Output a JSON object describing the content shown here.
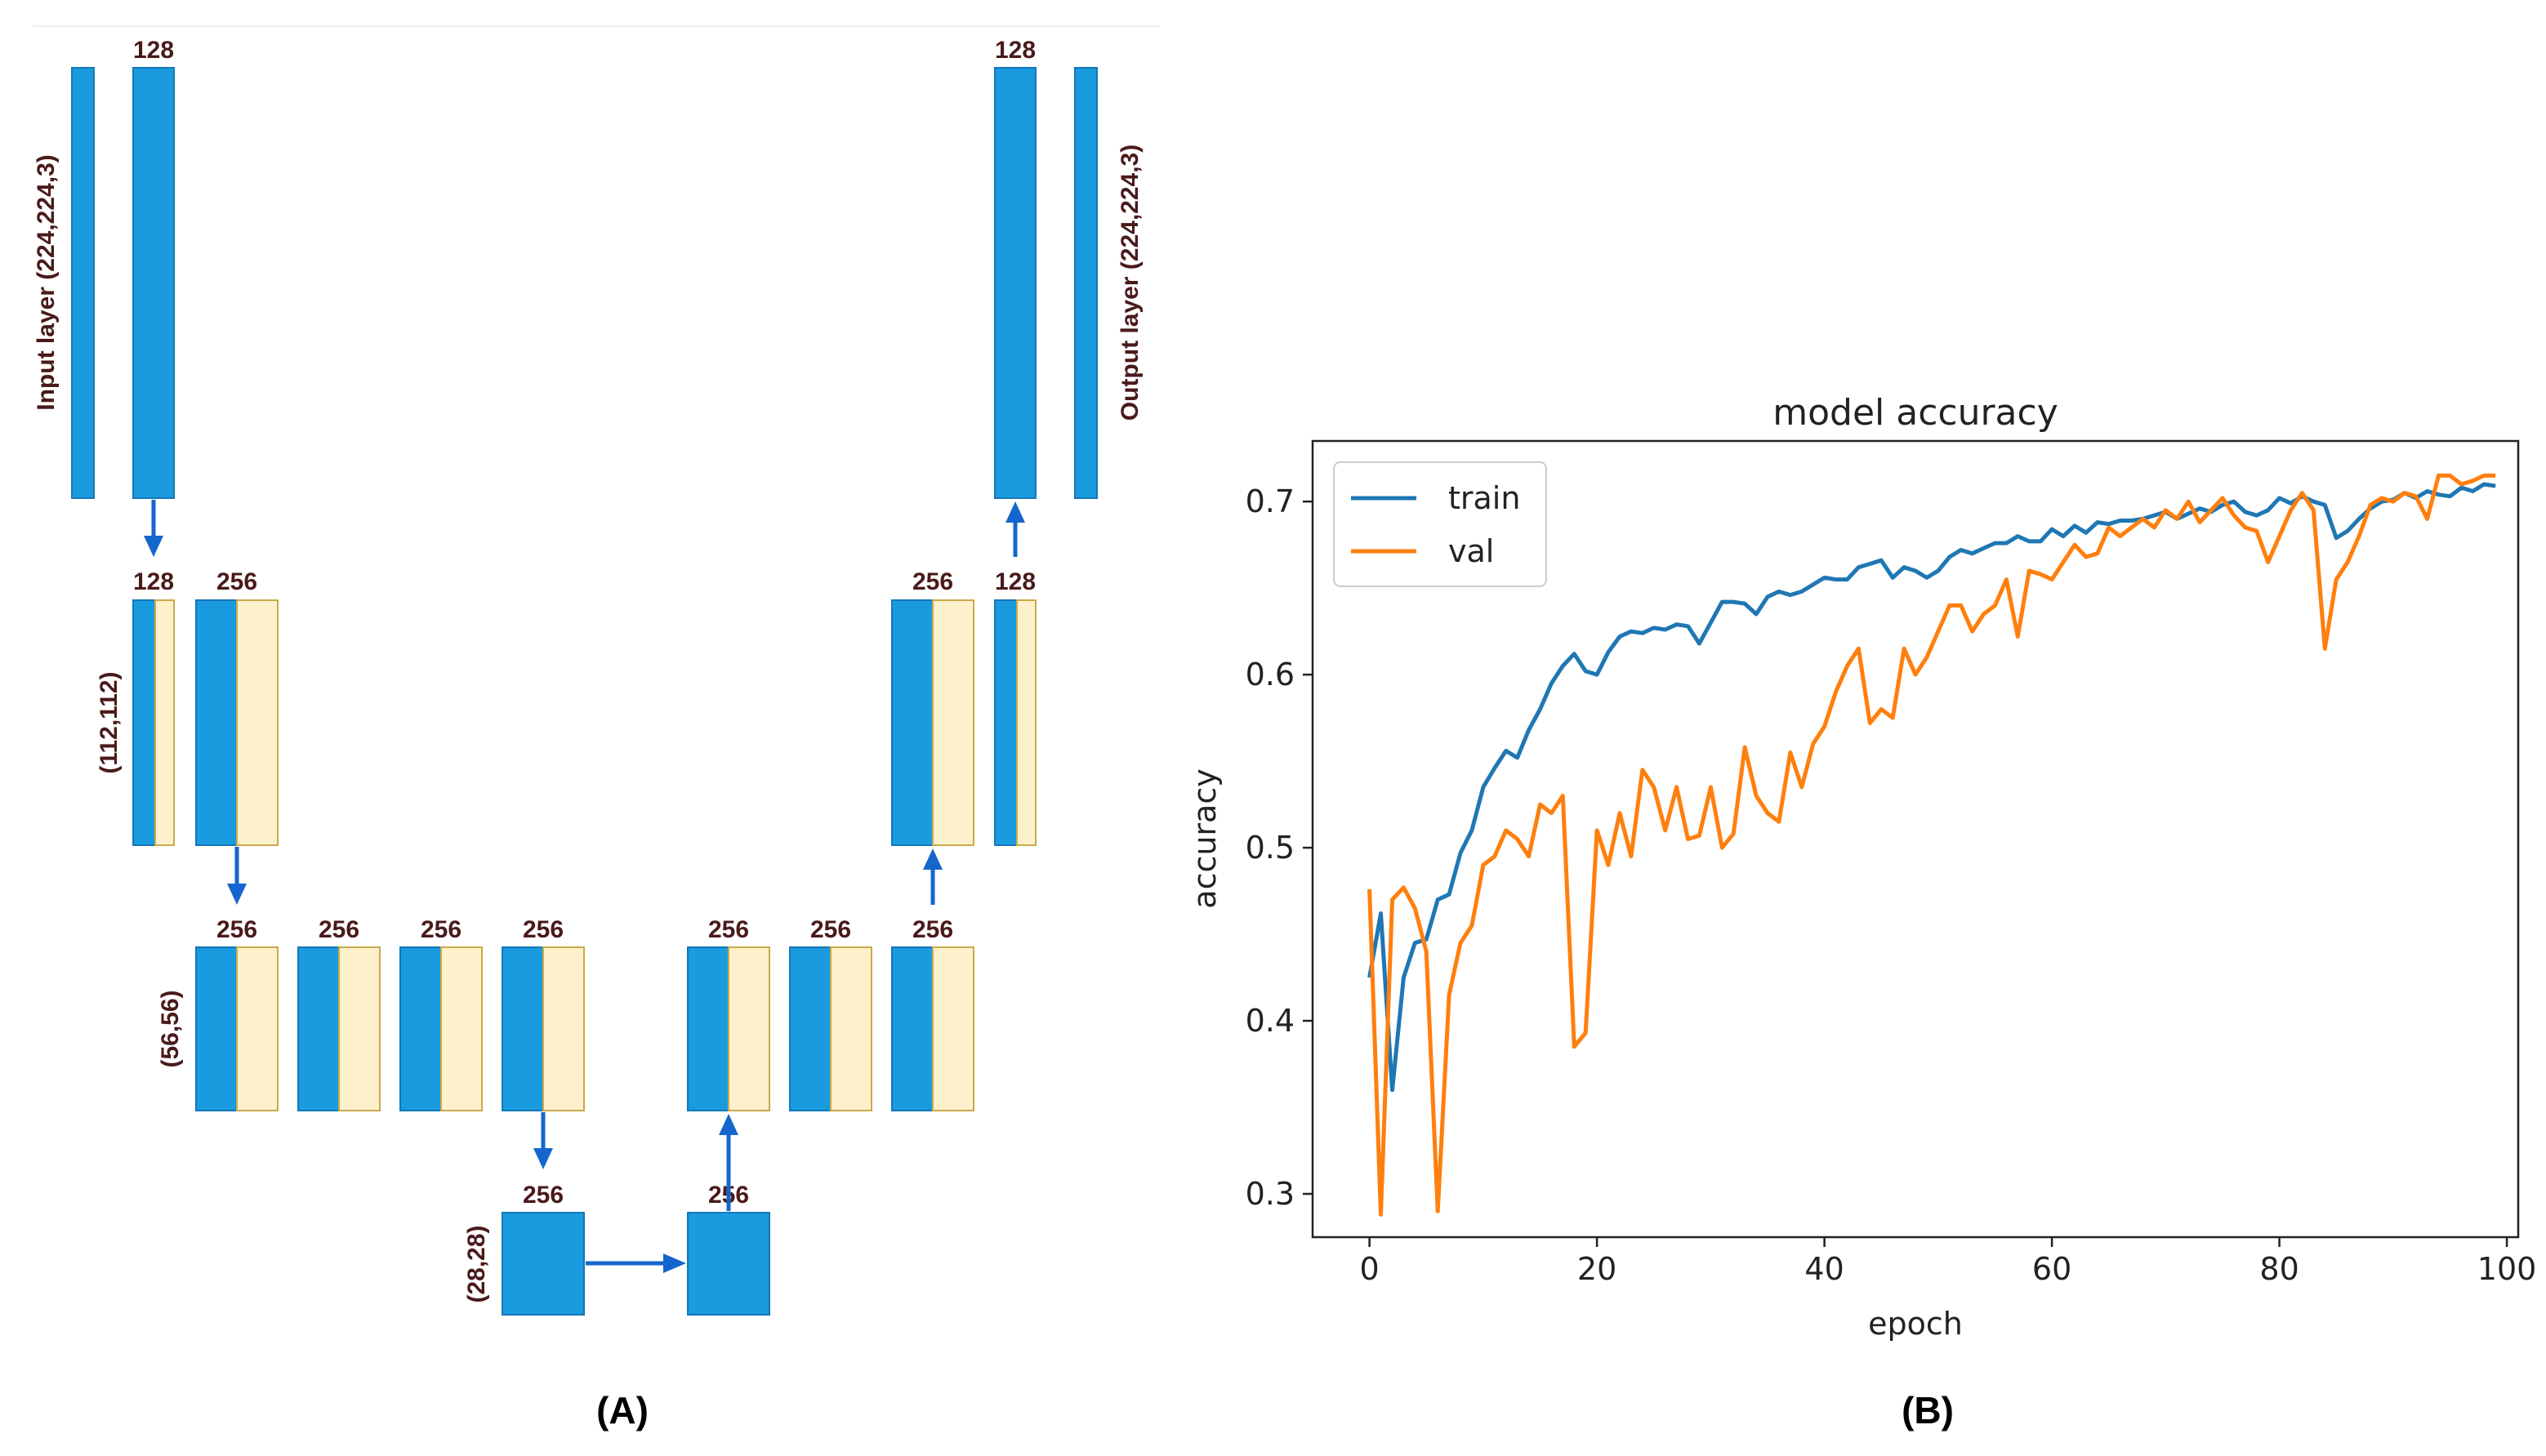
{
  "colors": {
    "block_blue": "#1a9be0",
    "block_cream": "#fdf1cc",
    "arrow": "#1566cc",
    "label_text": "#4a1a1a",
    "train": "#1f77b4",
    "val": "#ff7f0e"
  },
  "panel_a": {
    "label": "(A)",
    "input_layer_label": "Input layer (224,224,3)",
    "output_layer_label": "Output layer (224,224,3)",
    "dim_labels": {
      "d112": "(112,112)",
      "d56": "(56,56)",
      "d28": "(28,28)"
    },
    "filters": {
      "enc1": "128",
      "enc2a": "128",
      "enc2b": "256",
      "enc3a": "256",
      "enc3b": "256",
      "enc3c": "256",
      "enc3d": "256",
      "bott1": "256",
      "bott2": "256",
      "dec3a": "256",
      "dec3b": "256",
      "dec3c": "256",
      "dec2a": "256",
      "dec2b": "128",
      "dec1": "128"
    }
  },
  "panel_b": {
    "label": "(B)"
  },
  "chart_data": {
    "type": "line",
    "title": "model accuracy",
    "xlabel": "epoch",
    "ylabel": "accuracy",
    "xlim": [
      -5,
      101
    ],
    "ylim": [
      0.275,
      0.735
    ],
    "xticks": [
      0,
      20,
      40,
      60,
      80,
      100
    ],
    "yticks": [
      0.3,
      0.4,
      0.5,
      0.6,
      0.7
    ],
    "xtick_labels": [
      "0",
      "20",
      "40",
      "60",
      "80",
      "100"
    ],
    "ytick_labels": [
      "0.3",
      "0.4",
      "0.5",
      "0.6",
      "0.7"
    ],
    "legend_position": "upper-left",
    "x": [
      0,
      1,
      2,
      3,
      4,
      5,
      6,
      7,
      8,
      9,
      10,
      11,
      12,
      13,
      14,
      15,
      16,
      17,
      18,
      19,
      20,
      21,
      22,
      23,
      24,
      25,
      26,
      27,
      28,
      29,
      30,
      31,
      32,
      33,
      34,
      35,
      36,
      37,
      38,
      39,
      40,
      41,
      42,
      43,
      44,
      45,
      46,
      47,
      48,
      49,
      50,
      51,
      52,
      53,
      54,
      55,
      56,
      57,
      58,
      59,
      60,
      61,
      62,
      63,
      64,
      65,
      66,
      67,
      68,
      69,
      70,
      71,
      72,
      73,
      74,
      75,
      76,
      77,
      78,
      79,
      80,
      81,
      82,
      83,
      84,
      85,
      86,
      87,
      88,
      89,
      90,
      91,
      92,
      93,
      94,
      95,
      96,
      97,
      98,
      99
    ],
    "series": [
      {
        "name": "train",
        "color": "#1f77b4",
        "values": [
          0.425,
          0.462,
          0.36,
          0.425,
          0.445,
          0.447,
          0.47,
          0.473,
          0.497,
          0.51,
          0.535,
          0.546,
          0.556,
          0.552,
          0.568,
          0.58,
          0.595,
          0.605,
          0.612,
          0.602,
          0.6,
          0.613,
          0.622,
          0.625,
          0.624,
          0.627,
          0.626,
          0.629,
          0.628,
          0.618,
          0.63,
          0.642,
          0.642,
          0.641,
          0.635,
          0.645,
          0.648,
          0.646,
          0.648,
          0.652,
          0.656,
          0.655,
          0.655,
          0.662,
          0.664,
          0.666,
          0.656,
          0.662,
          0.66,
          0.656,
          0.66,
          0.668,
          0.672,
          0.67,
          0.673,
          0.676,
          0.676,
          0.68,
          0.677,
          0.677,
          0.684,
          0.68,
          0.686,
          0.682,
          0.688,
          0.687,
          0.689,
          0.689,
          0.69,
          0.692,
          0.694,
          0.69,
          0.693,
          0.696,
          0.694,
          0.698,
          0.7,
          0.694,
          0.692,
          0.695,
          0.702,
          0.699,
          0.703,
          0.7,
          0.698,
          0.679,
          0.683,
          0.69,
          0.696,
          0.7,
          0.701,
          0.705,
          0.702,
          0.706,
          0.704,
          0.703,
          0.708,
          0.706,
          0.71,
          0.709
        ]
      },
      {
        "name": "val",
        "color": "#ff7f0e",
        "values": [
          0.476,
          0.288,
          0.47,
          0.477,
          0.465,
          0.44,
          0.29,
          0.415,
          0.445,
          0.455,
          0.49,
          0.495,
          0.51,
          0.505,
          0.495,
          0.525,
          0.52,
          0.53,
          0.385,
          0.393,
          0.51,
          0.49,
          0.52,
          0.495,
          0.545,
          0.535,
          0.51,
          0.535,
          0.505,
          0.507,
          0.535,
          0.5,
          0.508,
          0.558,
          0.53,
          0.52,
          0.515,
          0.555,
          0.535,
          0.56,
          0.57,
          0.59,
          0.605,
          0.615,
          0.572,
          0.58,
          0.575,
          0.615,
          0.6,
          0.61,
          0.625,
          0.64,
          0.64,
          0.625,
          0.635,
          0.64,
          0.655,
          0.622,
          0.66,
          0.658,
          0.655,
          0.665,
          0.675,
          0.668,
          0.67,
          0.685,
          0.68,
          0.685,
          0.69,
          0.685,
          0.695,
          0.69,
          0.7,
          0.688,
          0.695,
          0.702,
          0.692,
          0.685,
          0.683,
          0.665,
          0.68,
          0.695,
          0.705,
          0.695,
          0.615,
          0.655,
          0.665,
          0.68,
          0.698,
          0.702,
          0.7,
          0.705,
          0.703,
          0.69,
          0.715,
          0.715,
          0.71,
          0.712,
          0.715,
          0.715
        ]
      }
    ]
  }
}
